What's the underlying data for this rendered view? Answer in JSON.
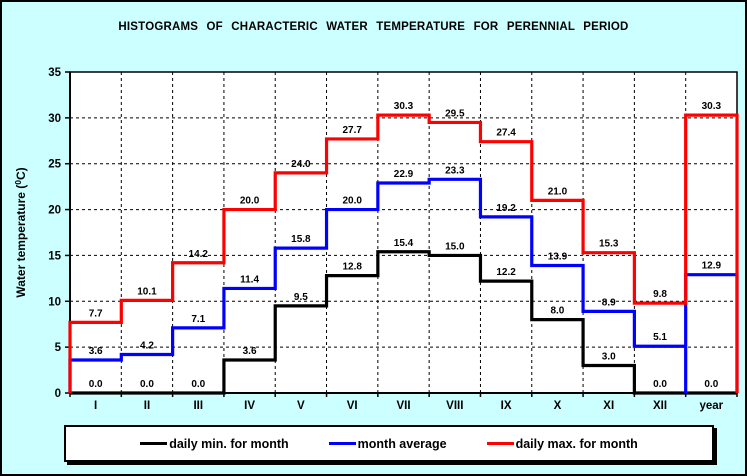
{
  "window": {
    "background_color": "#CCFFFF",
    "border_color": "#000000"
  },
  "chart_data": {
    "type": "line",
    "subtype": "step-histogram",
    "title": "HISTOGRAMS OF CHARACTERIC WATER TEMPERATURE FOR PERENNIAL PERIOD",
    "xlabel": "",
    "ylabel": "Water temperature (⁰C)",
    "categories": [
      "I",
      "II",
      "III",
      "IV",
      "V",
      "VI",
      "VII",
      "VIII",
      "IX",
      "X",
      "XI",
      "XII",
      "year"
    ],
    "ylim": [
      0,
      35
    ],
    "y_ticks": [
      0,
      5,
      10,
      15,
      20,
      25,
      30,
      35
    ],
    "grid": "dashed",
    "plot_background": "#FFFFFF",
    "legend_position": "bottom",
    "value_labels_decimals": 1,
    "series": [
      {
        "name": "daily min. for month",
        "color": "#000000",
        "values": [
          0.0,
          0.0,
          0.0,
          3.6,
          9.5,
          12.8,
          15.4,
          15.0,
          12.2,
          8.0,
          3.0,
          0.0,
          0.0
        ]
      },
      {
        "name": "month average",
        "color": "#0000FF",
        "values": [
          3.6,
          4.2,
          7.1,
          11.4,
          15.8,
          20.0,
          22.9,
          23.3,
          19.2,
          13.9,
          8.9,
          5.1,
          12.9
        ],
        "year_step_rises_from_zero": true
      },
      {
        "name": "daily max. for month",
        "color": "#FF0000",
        "values": [
          7.7,
          10.1,
          14.2,
          20.0,
          24.0,
          27.7,
          30.3,
          29.5,
          27.4,
          21.0,
          15.3,
          9.8,
          30.3
        ]
      }
    ]
  }
}
